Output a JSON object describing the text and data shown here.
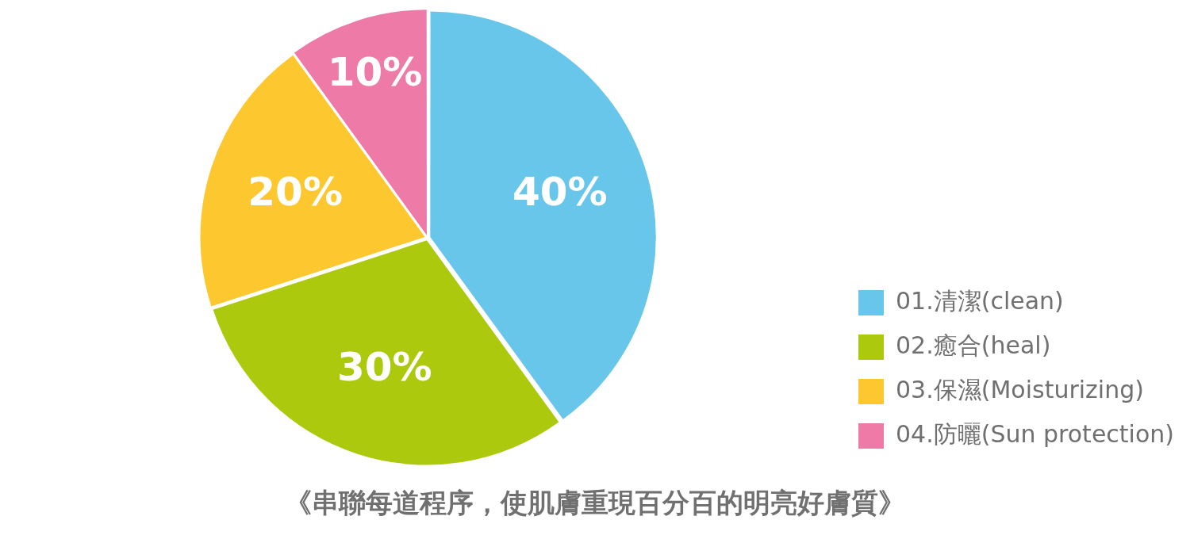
{
  "chart_data": {
    "type": "pie",
    "title": "《串聯每道程序，使肌膚重現百分百的明亮好膚質》",
    "categories": [
      "01.清潔(clean)",
      "02.癒合(heal)",
      "03.保濕(Moisturizing)",
      "04.防曬(Sun protection)"
    ],
    "values": [
      40,
      30,
      20,
      10
    ],
    "colors": [
      "#68c6ea",
      "#acc90e",
      "#fdc82f",
      "#ee7ba7"
    ],
    "value_labels": [
      "40%",
      "30%",
      "20%",
      "10%"
    ],
    "legend": "bottom right"
  }
}
